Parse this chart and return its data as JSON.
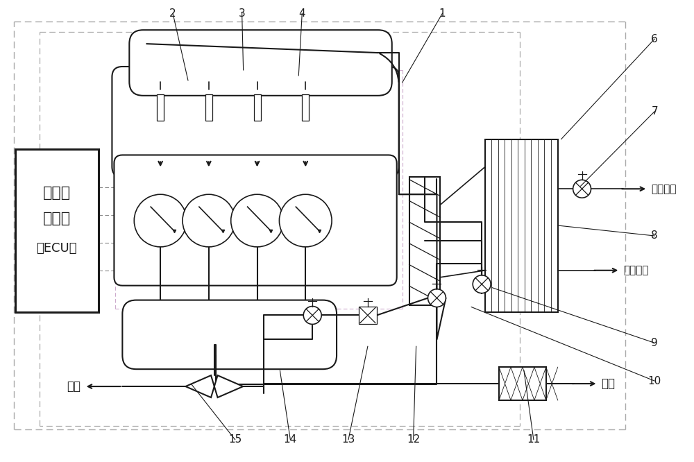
{
  "bg": "#ffffff",
  "lc": "#1a1a1a",
  "gray": "#888888",
  "purple": "#cc88cc",
  "coolant_in": "冷却水进",
  "coolant_out": "冷却水出",
  "exhaust": "排气",
  "intake": "进气",
  "ecu_text": [
    "电子控",
    "制单元",
    "（ECU）"
  ],
  "fig_w": 10.0,
  "fig_h": 6.66,
  "dpi": 100
}
